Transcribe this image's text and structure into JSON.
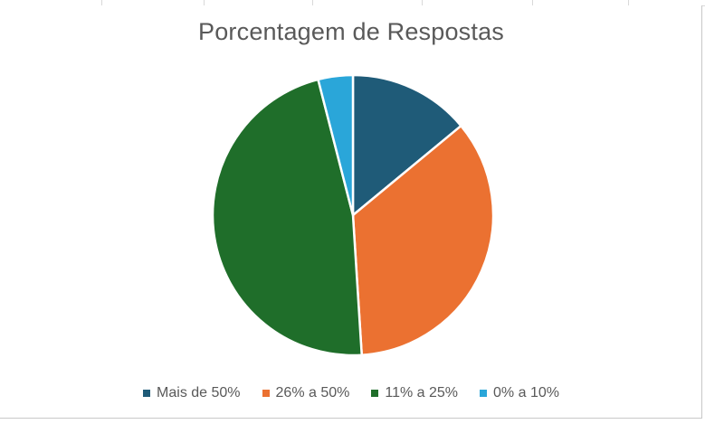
{
  "chart_data": {
    "type": "pie",
    "title": "Porcentagem de Respostas",
    "categories": [
      "Mais de 50%",
      "26% a 50%",
      "11% a 25%",
      "0% a 10%"
    ],
    "values": [
      14,
      35,
      47,
      4
    ],
    "colors": [
      "#1f5b78",
      "#eb7131",
      "#1f6e2a",
      "#2aa6d9"
    ],
    "legend_position": "bottom",
    "start_angle": "top, clockwise"
  }
}
